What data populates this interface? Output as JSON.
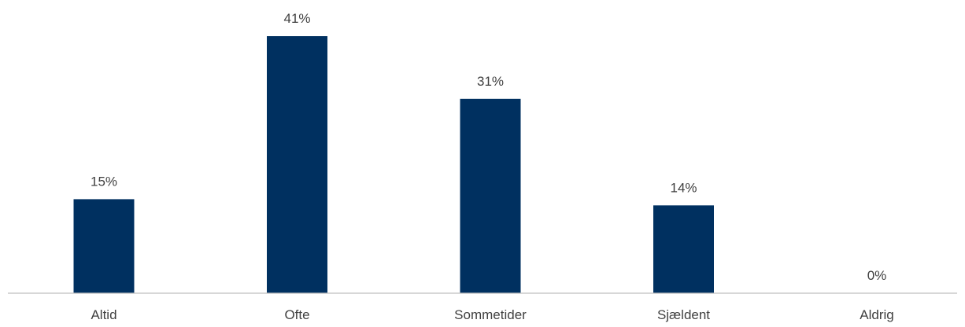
{
  "chart_data": {
    "type": "bar",
    "categories": [
      "Altid",
      "Ofte",
      "Sommetider",
      "Sjældent",
      "Aldrig"
    ],
    "values": [
      15,
      41,
      31,
      14,
      0
    ],
    "data_labels": [
      "15%",
      "41%",
      "31%",
      "14%",
      "0%"
    ],
    "title": "",
    "xlabel": "",
    "ylabel": "",
    "ylim": [
      0,
      41
    ],
    "unit": "%",
    "grid": false,
    "legend": "none",
    "bar_color": "#003060"
  }
}
